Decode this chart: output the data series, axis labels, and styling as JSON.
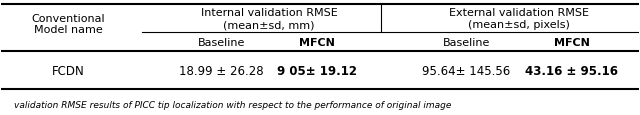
{
  "col0_header": [
    "Conventional",
    "Model name"
  ],
  "col1_header": [
    "Internal validation RMSE",
    "(mean±sd, mm)"
  ],
  "col2_header": [
    "External validation RMSE",
    "(mean±sd, pixels)"
  ],
  "subheader": [
    "Baseline",
    "MFCN",
    "Baseline",
    "MFCN"
  ],
  "row_label": "FCDN",
  "col1_baseline": "18.99 ± 26.28",
  "col1_mfcn": "9 05± 19.12",
  "col2_baseline": "95.64± 145.56",
  "col2_mfcn": "43.16 ± 95.16",
  "caption": "validation RMSE results of PICC tip localization with respect to the performance of original image",
  "bg_color": "#ffffff",
  "text_color": "#000000",
  "line_color": "#000000"
}
